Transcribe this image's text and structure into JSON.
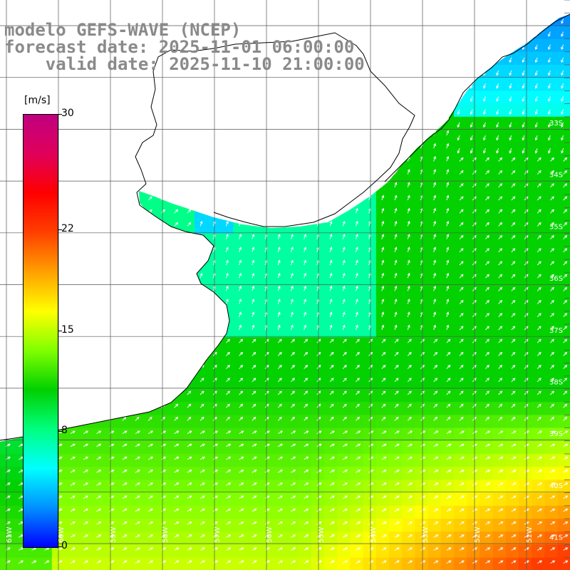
{
  "title": {
    "line1": "modelo GEFS-WAVE (NCEP)",
    "line2": "forecast date: 2025-11-01 06:00:00",
    "line3": "    valid date: 2025-11-10 21:00:00"
  },
  "colorbar": {
    "unit": "[m/s]",
    "ticks": [
      {
        "label": "30",
        "value": 30
      },
      {
        "label": "22",
        "value": 22
      },
      {
        "label": "15",
        "value": 15
      },
      {
        "label": "8",
        "value": 8
      },
      {
        "label": "0",
        "value": 0
      }
    ],
    "range": [
      0,
      30
    ],
    "colors": [
      "#0000ff",
      "#0090ff",
      "#00ffff",
      "#00ff80",
      "#00d000",
      "#80ff00",
      "#ffff00",
      "#ffa000",
      "#ff4000",
      "#ff0000",
      "#e0005a",
      "#c00080"
    ]
  },
  "latitude_labels": [
    "33S",
    "34S",
    "35S",
    "36S",
    "37S",
    "38S",
    "39S",
    "40S",
    "41S"
  ],
  "longitude_labels": [
    "61W",
    "60W",
    "59W",
    "58W",
    "57W",
    "56W",
    "55W",
    "54W",
    "53W",
    "52W",
    "51W"
  ],
  "map_data": {
    "region": "Rio de la Plata / Uruguay coast",
    "variable": "wind speed (m/s) with direction arrows",
    "lon_range": [
      -61.5,
      -50.5
    ],
    "lat_range": [
      -41.3,
      -30.7
    ],
    "land_color": "#ffffff",
    "grid_color": "#555555"
  }
}
